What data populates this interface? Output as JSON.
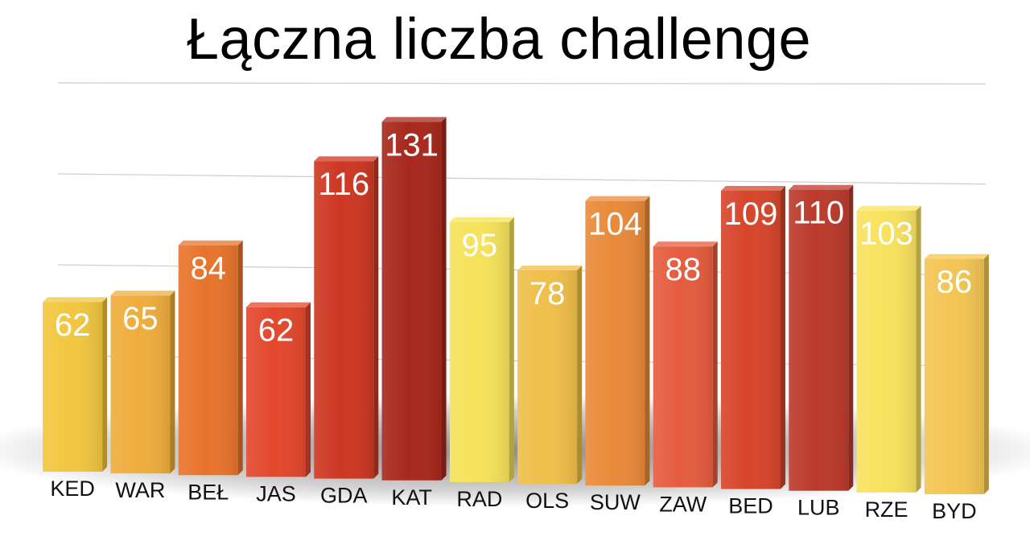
{
  "chart_data": {
    "type": "bar",
    "title": "Łączna liczba challenge",
    "xlabel": "",
    "ylabel": "",
    "ylim": [
      0,
      150
    ],
    "grid": true,
    "categories": [
      "KED",
      "WAR",
      "BEŁ",
      "JAS",
      "GDA",
      "KAT",
      "RAD",
      "OLS",
      "SUW",
      "ZAW",
      "BED",
      "LUB",
      "RZE",
      "BYD"
    ],
    "values": [
      62,
      65,
      84,
      62,
      116,
      131,
      95,
      78,
      104,
      88,
      109,
      110,
      103,
      86
    ],
    "colors": [
      "#f2c63f",
      "#efad3c",
      "#e8742b",
      "#e3472c",
      "#cd3722",
      "#a8281c",
      "#f6e25a",
      "#f0bf4a",
      "#e98a3a",
      "#e55c3e",
      "#d7452b",
      "#bb3a2c",
      "#f8e25e",
      "#f3c553"
    ]
  }
}
